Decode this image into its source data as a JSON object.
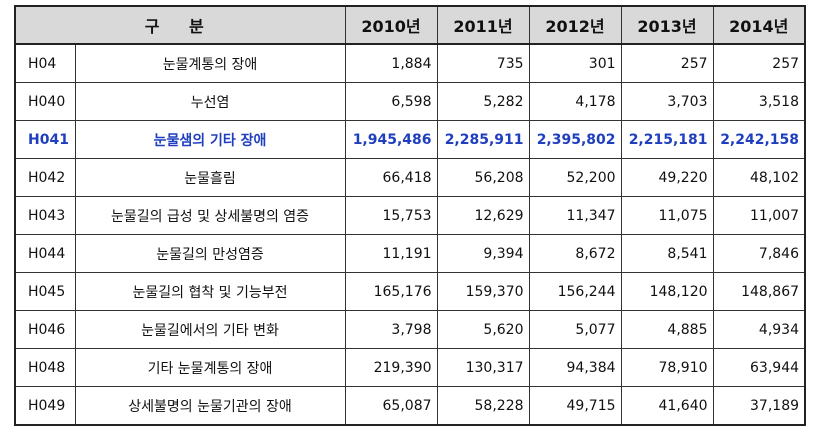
{
  "table": {
    "headers": [
      "구 분",
      "2010년",
      "2011년",
      "2012년",
      "2013년",
      "2014년"
    ],
    "rows": [
      {
        "code": "H04",
        "name": "눈물계통의 장애",
        "values": [
          "1,884",
          "735",
          "301",
          "257",
          "257"
        ]
      },
      {
        "code": "H040",
        "name": "누선염",
        "values": [
          "6,598",
          "5,282",
          "4,178",
          "3,703",
          "3,518"
        ]
      },
      {
        "code": "H041",
        "name": "눈물샘의 기타 장애",
        "values": [
          "1,945,486",
          "2,285,911",
          "2,395,802",
          "2,215,181",
          "2,242,158"
        ],
        "highlight": true
      },
      {
        "code": "H042",
        "name": "눈물흘림",
        "values": [
          "66,418",
          "56,208",
          "52,200",
          "49,220",
          "48,102"
        ]
      },
      {
        "code": "H043",
        "name": "눈물길의 급성 및 상세불명의 염증",
        "values": [
          "15,753",
          "12,629",
          "11,347",
          "11,075",
          "11,007"
        ]
      },
      {
        "code": "H044",
        "name": "눈물길의 만성염증",
        "values": [
          "11,191",
          "9,394",
          "8,672",
          "8,541",
          "7,846"
        ]
      },
      {
        "code": "H045",
        "name": "눈물길의 협착 및 기능부전",
        "values": [
          "165,176",
          "159,370",
          "156,244",
          "148,120",
          "148,867"
        ]
      },
      {
        "code": "H046",
        "name": "눈물길에서의 기타 변화",
        "values": [
          "3,798",
          "5,620",
          "5,077",
          "4,885",
          "4,934"
        ]
      },
      {
        "code": "H048",
        "name": "기타 눈물계통의 장애",
        "values": [
          "219,390",
          "130,317",
          "94,384",
          "78,910",
          "63,944"
        ]
      },
      {
        "code": "H049",
        "name": "상세불명의 눈물기관의 장애",
        "values": [
          "65,087",
          "58,228",
          "49,715",
          "41,640",
          "37,189"
        ]
      }
    ]
  },
  "colors": {
    "header_bg": "#d9d9d9",
    "highlight_text": "#1f3fbf"
  }
}
